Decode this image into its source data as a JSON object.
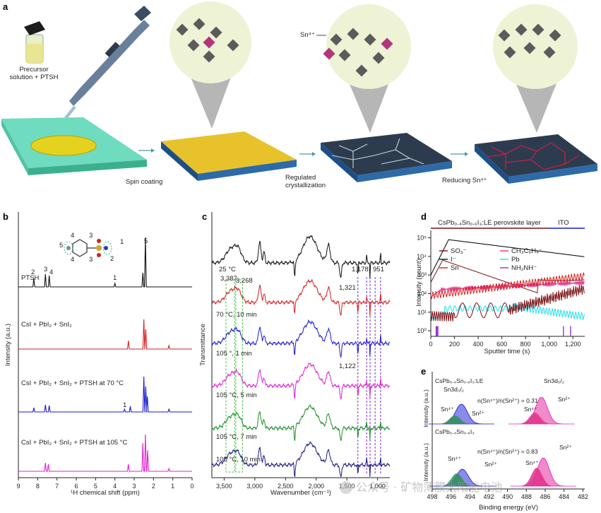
{
  "colors": {
    "black": "#111111",
    "red": "#d42020",
    "blue": "#1a1ad0",
    "magenta": "#e020d0",
    "green": "#1f8f2a",
    "navy": "#1a1a80",
    "dred": "#7a0e12",
    "cyan": "#1fe0e8",
    "pink": "#e0308a",
    "purple": "#9b30d9",
    "lightblue": "#8a8ae8",
    "lightpink": "#f08ac8",
    "dgreen": "#2f8f5a"
  },
  "panel_a": {
    "label": "a",
    "precursor_label": "Precursor\nsolution + PTSH",
    "steps": [
      "Spin coating",
      "Regulated\ncrystallization",
      "Reducing Sn⁴⁺"
    ],
    "sn_label": "Sn⁴⁺"
  },
  "panel_b": {
    "label": "b",
    "ylabel": "Intensity (a.u.)",
    "xlabel": "¹H chemical shift (ppm)",
    "xticks": [
      "9",
      "8",
      "7",
      "6",
      "5",
      "4",
      "3",
      "2",
      "1",
      "0"
    ],
    "spectra": [
      {
        "name": "PTSH",
        "color": "#111111",
        "peaks": [
          "2",
          "3",
          "4",
          "1",
          "5"
        ]
      },
      {
        "name": "CsI + PbI₂ + SnI₂",
        "color": "#d42020"
      },
      {
        "name": "CsI + PbI₂ + SnI₂ + PTSH at 70 °C",
        "color": "#1a1ad0",
        "peaks": [
          "1"
        ]
      },
      {
        "name": "CsI + PbI₂ + SnI₂ + PTSH at 105 °C",
        "color": "#e020d0"
      }
    ],
    "molecule_labels": [
      "5",
      "4",
      "3",
      "1",
      "2",
      "4",
      "3"
    ]
  },
  "panel_c": {
    "label": "c",
    "ylabel": "Transmittance",
    "xlabel": "Wavenumber (cm⁻¹)",
    "xticks": [
      "3,500",
      "3,000",
      "2,500",
      "2,000",
      "1,500",
      "1,000"
    ],
    "curves": [
      {
        "name": "25 °C",
        "color": "#111111"
      },
      {
        "name": "70 °C, 10 min",
        "color": "#d42020"
      },
      {
        "name": "105 °, 1 min",
        "color": "#1a1ad0"
      },
      {
        "name": "105 °C, 5 min",
        "color": "#e020d0"
      },
      {
        "name": "105 °C, 7 min",
        "color": "#1f8f2a"
      },
      {
        "name": "105 °C, 10 min",
        "color": "#1a1a80"
      }
    ],
    "annotations": [
      "3,387",
      "3,268",
      "1,321",
      "1,178",
      "951",
      "1,122"
    ]
  },
  "panel_d": {
    "label": "d",
    "title": "CsPb₀.₄Sn₀.₆I₃:LE perovskite layer",
    "ito": "ITO",
    "ylabel": "Intensity (count)",
    "xlabel": "Sputter time (s)",
    "xticks": [
      "0",
      "200",
      "400",
      "600",
      "800",
      "1,000",
      "1,200"
    ],
    "yticks": [
      "10⁰",
      "10¹",
      "10²",
      "10³",
      "10⁴",
      "10⁵"
    ],
    "legend": [
      "SO₃⁻",
      "I⁻",
      "Sn",
      "CH₃C₆H₄⁻",
      "Pb",
      "NH₂NH⁻"
    ]
  },
  "panel_e": {
    "label": "e",
    "top_title": "CsPb₀.₄Sn₀.₆I₃:LE",
    "bottom_title": "CsPb₀.₄Sn₀.₆I₃",
    "sn3d32": "Sn3d₃/₂",
    "sn3d52": "Sn3d₅/₂",
    "ratio_top": "n(Sn⁴⁺)/n(Sn²⁺) = 0.31",
    "ratio_bottom": "n(Sn⁴⁺)/n(Sn²⁺) = 0.83",
    "sn4": "Sn⁴⁺",
    "sn2": "Sn²⁺",
    "ylabel": "Intensity (a.u.)",
    "xlabel": "Binding energy (eV)",
    "xticks": [
      "498",
      "496",
      "494",
      "492",
      "490",
      "488",
      "486",
      "484",
      "482"
    ]
  },
  "watermark": "公众号 · 矿物薄膜太阳能电池"
}
